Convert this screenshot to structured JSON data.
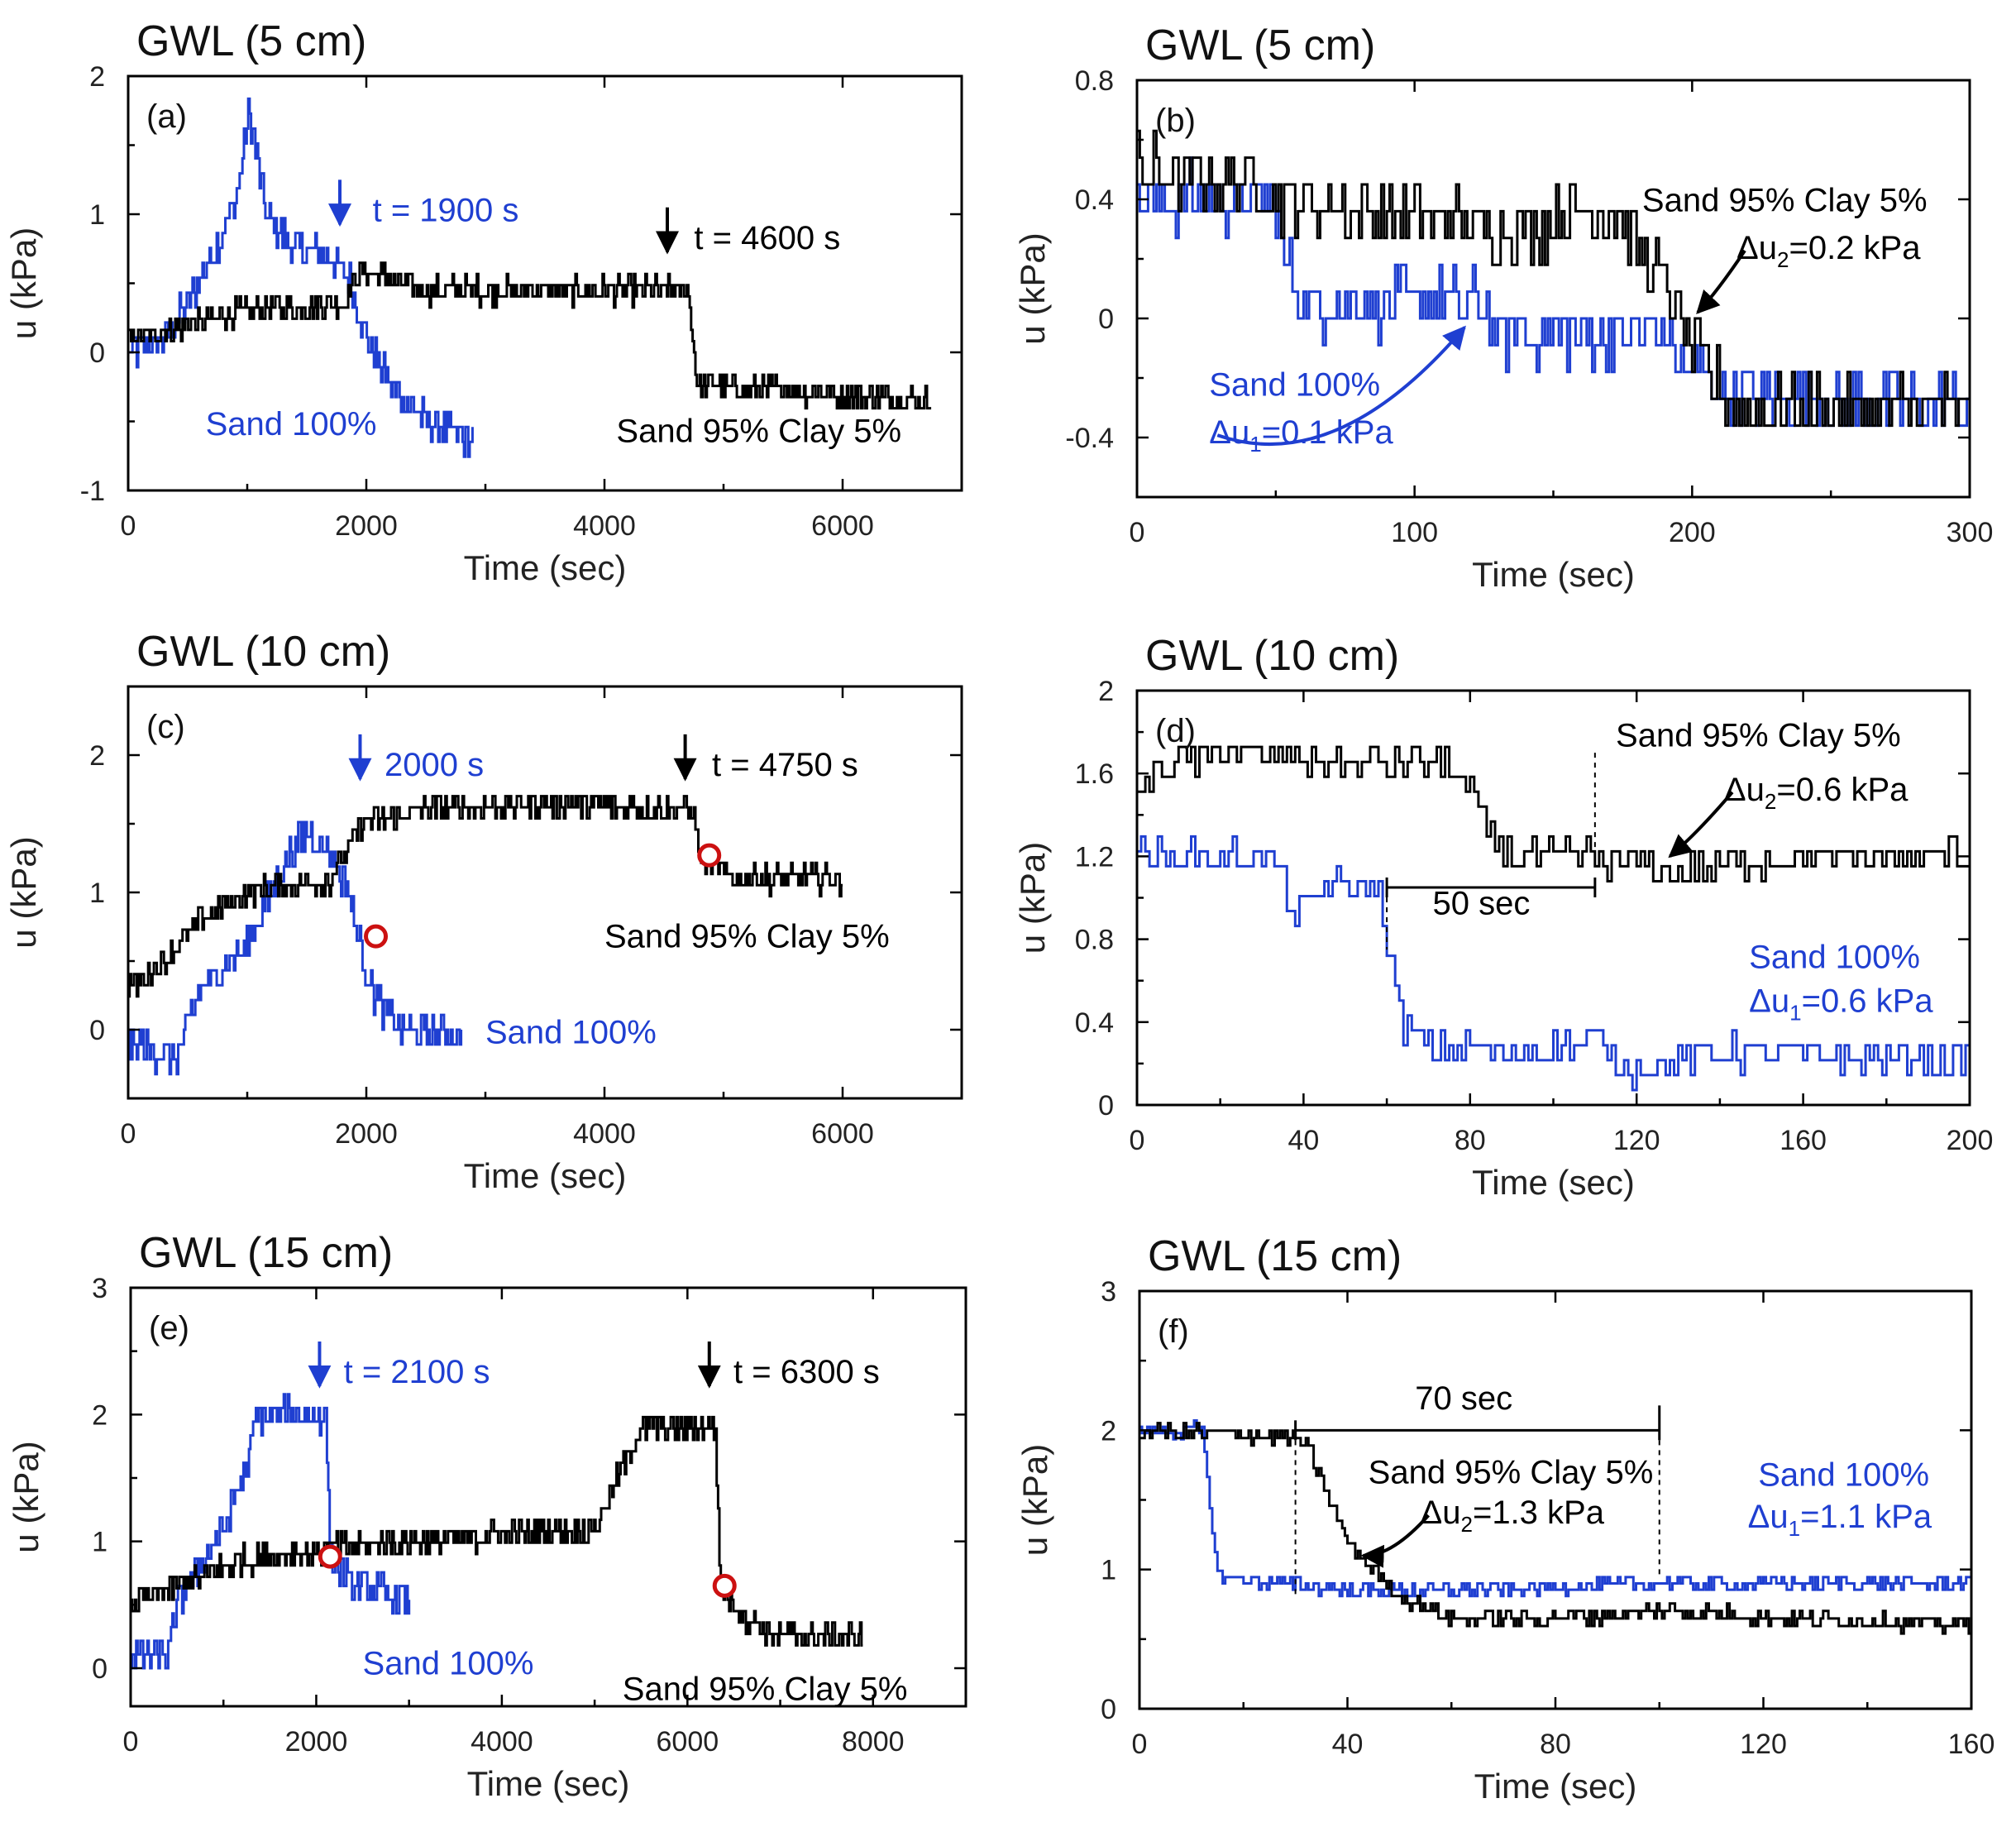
{
  "colors": {
    "sand": "#1f3fd1",
    "mix": "#000000",
    "marker": "#cc1111"
  },
  "series_names": {
    "sand": "Sand 100%",
    "mix": "Sand 95% Clay 5%"
  },
  "chart_data": [
    {
      "id": "a",
      "type": "line",
      "panel_label": "(a)",
      "title": "GWL (5 cm)",
      "xlabel": "Time (sec)",
      "ylabel": "u (kPa)",
      "xlim": [
        0,
        7000
      ],
      "ylim": [
        -1,
        2
      ],
      "xticks": [
        0,
        2000,
        4000,
        6000
      ],
      "yticks": [
        -1,
        0,
        1,
        2
      ],
      "noise": {
        "sand": 0.12,
        "mix": 0.09
      },
      "dt": {
        "sand": 12,
        "mix": 12
      },
      "series": [
        {
          "key": "sand",
          "name": "Sand 100%",
          "x": [
            0,
            300,
            600,
            900,
            1020,
            1150,
            1400,
            1700,
            1850,
            2000,
            2200,
            2500,
            2900
          ],
          "y": [
            0,
            0.1,
            0.5,
            1.1,
            1.75,
            1.0,
            0.75,
            0.7,
            0.55,
            0.1,
            -0.25,
            -0.5,
            -0.65
          ]
        },
        {
          "key": "mix",
          "name": "Sand 95% Clay 5%",
          "x": [
            0,
            500,
            1000,
            1800,
            1950,
            2500,
            4000,
            4700,
            4780,
            5000,
            6000,
            6750
          ],
          "y": [
            0.1,
            0.2,
            0.3,
            0.35,
            0.6,
            0.45,
            0.45,
            0.45,
            -0.25,
            -0.25,
            -0.3,
            -0.35
          ]
        }
      ],
      "annotations": [
        {
          "text": "t = 1900 s",
          "x": 1900,
          "y": 0.95,
          "color": "sand",
          "arrow": true,
          "ax": 1750,
          "ay": 0.95
        },
        {
          "text": "t = 4600 s",
          "x": 4600,
          "y": 0.75,
          "color": "mix",
          "arrow": true,
          "ax": 4500,
          "ay": 0.75
        },
        {
          "text": "Sand 100%",
          "x": 650,
          "y": -0.6,
          "color": "sand"
        },
        {
          "text": "Sand 95% Clay 5%",
          "x": 4100,
          "y": -0.65,
          "color": "mix"
        }
      ],
      "markers": []
    },
    {
      "id": "b",
      "type": "line",
      "panel_label": "(b)",
      "title": "GWL (5 cm)",
      "xlabel": "Time (sec)",
      "ylabel": "u (kPa)",
      "xlim": [
        0,
        300
      ],
      "ylim": [
        -0.6,
        0.8
      ],
      "xticks": [
        0,
        100,
        200,
        300
      ],
      "yticks": [
        -0.4,
        0,
        0.4,
        0.8
      ],
      "ytick_labels": [
        "-0.4",
        "0",
        "0.4",
        "0.8"
      ],
      "noise": {
        "sand": 0.1,
        "mix": 0.1
      },
      "dt": {
        "sand": 1,
        "mix": 1
      },
      "series": [
        {
          "key": "sand",
          "name": "Sand 100%",
          "x": [
            0,
            50,
            52,
            60,
            125,
            130,
            175,
            190,
            195,
            215,
            300
          ],
          "y": [
            0.4,
            0.4,
            0.2,
            0.05,
            0.05,
            -0.05,
            -0.05,
            -0.05,
            -0.15,
            -0.25,
            -0.3
          ]
        },
        {
          "key": "mix",
          "name": "Sand 95% Clay 5%",
          "x": [
            0,
            45,
            50,
            100,
            130,
            170,
            180,
            190,
            200,
            215,
            300
          ],
          "y": [
            0.5,
            0.45,
            0.4,
            0.35,
            0.3,
            0.35,
            0.25,
            0.1,
            -0.1,
            -0.3,
            -0.3
          ]
        }
      ],
      "annotations": [
        {
          "text": "Sand 95% Clay 5%",
          "x": 182,
          "y": 0.36,
          "color": "mix"
        },
        {
          "text": "Δu",
          "sub": "2",
          "rest": "=0.2 kPa",
          "x": 216,
          "y": 0.2,
          "color": "mix",
          "arrow": true,
          "ax": 202,
          "ay": 0.02
        },
        {
          "text": "Sand 100%",
          "x": 26,
          "y": -0.26,
          "color": "sand"
        },
        {
          "text": "Δu",
          "sub": "1",
          "rest": "=0.1 kPa",
          "x": 26,
          "y": -0.42,
          "color": "sand",
          "arrow": true,
          "ax": 118,
          "ay": -0.03
        }
      ],
      "markers": []
    },
    {
      "id": "c",
      "type": "line",
      "panel_label": "(c)",
      "title": "GWL (10 cm)",
      "xlabel": "Time (sec)",
      "ylabel": "u (kPa)",
      "xlim": [
        0,
        7000
      ],
      "ylim": [
        -0.5,
        2.5
      ],
      "xticks": [
        0,
        2000,
        4000,
        6000
      ],
      "yticks": [
        0,
        1,
        2
      ],
      "noise": {
        "sand": 0.12,
        "mix": 0.09
      },
      "dt": {
        "sand": 12,
        "mix": 12
      },
      "series": [
        {
          "key": "sand",
          "name": "Sand 100%",
          "x": [
            0,
            400,
            600,
            1000,
            1300,
            1500,
            1700,
            1850,
            2000,
            2100,
            2300,
            2800
          ],
          "y": [
            -0.1,
            -0.2,
            0.3,
            0.6,
            1.2,
            1.45,
            1.3,
            1.0,
            0.4,
            0.2,
            0.0,
            -0.05
          ]
        },
        {
          "key": "mix",
          "name": "Sand 95% Clay 5%",
          "x": [
            0,
            300,
            600,
            1000,
            1700,
            1950,
            2500,
            3500,
            4750,
            4800,
            5100,
            6000
          ],
          "y": [
            0.3,
            0.5,
            0.8,
            1.0,
            1.1,
            1.5,
            1.6,
            1.65,
            1.6,
            1.25,
            1.1,
            1.1
          ]
        }
      ],
      "annotations": [
        {
          "text": "2000 s",
          "x": 2000,
          "y": 1.85,
          "color": "sand",
          "arrow": true,
          "ax": 1920,
          "ay": 1.85
        },
        {
          "text": "t = 4750 s",
          "x": 4750,
          "y": 1.85,
          "color": "mix",
          "arrow": true,
          "ax": 4650,
          "ay": 1.85
        },
        {
          "text": "Sand 95% Clay 5%",
          "x": 4000,
          "y": 0.6,
          "color": "mix"
        },
        {
          "text": "Sand 100%",
          "x": 3000,
          "y": -0.1,
          "color": "sand"
        }
      ],
      "markers": [
        {
          "x": 2080,
          "y": 0.68
        },
        {
          "x": 4880,
          "y": 1.27
        }
      ]
    },
    {
      "id": "d",
      "type": "line",
      "panel_label": "(d)",
      "title": "GWL (10 cm)",
      "xlabel": "Time (sec)",
      "ylabel": "u (kPa)",
      "xlim": [
        0,
        200
      ],
      "ylim": [
        0,
        2
      ],
      "xticks": [
        0,
        40,
        80,
        120,
        160,
        200
      ],
      "yticks": [
        0,
        0.4,
        0.8,
        1.2,
        1.6,
        2
      ],
      "ytick_labels": [
        "0",
        "0.4",
        "0.8",
        "1.2",
        "1.6",
        "2"
      ],
      "noise": {
        "sand": 0.08,
        "mix": 0.08
      },
      "dt": {
        "sand": 1,
        "mix": 1
      },
      "series": [
        {
          "key": "sand",
          "name": "Sand 100%",
          "x": [
            0,
            30,
            35,
            38,
            45,
            58,
            60,
            63,
            70,
            90,
            110,
            118,
            140,
            200
          ],
          "y": [
            1.2,
            1.2,
            1.1,
            0.9,
            1.05,
            1.05,
            0.8,
            0.4,
            0.28,
            0.25,
            0.3,
            0.18,
            0.25,
            0.22
          ]
        },
        {
          "key": "mix",
          "name": "Sand 95% Clay 5%",
          "x": [
            0,
            10,
            20,
            50,
            75,
            80,
            85,
            90,
            110,
            130,
            150,
            200
          ],
          "y": [
            1.55,
            1.65,
            1.7,
            1.65,
            1.65,
            1.5,
            1.3,
            1.2,
            1.2,
            1.12,
            1.18,
            1.2
          ]
        }
      ],
      "annotations": [
        {
          "text": "Sand 95% Clay 5%",
          "x": 115,
          "y": 1.73,
          "color": "mix"
        },
        {
          "text": "Δu",
          "sub": "2",
          "rest": "=0.6 kPa",
          "x": 141,
          "y": 1.47,
          "color": "mix",
          "arrow": true,
          "ax": 128,
          "ay": 1.2
        },
        {
          "text": "50 sec",
          "x": 71,
          "y": 0.92,
          "color": "mix"
        },
        {
          "text": "Sand 100%",
          "x": 147,
          "y": 0.66,
          "color": "sand"
        },
        {
          "text": "Δu",
          "sub": "1",
          "rest": "=0.6 kPa",
          "x": 147,
          "y": 0.45,
          "color": "sand"
        }
      ],
      "markers": []
    },
    {
      "id": "e",
      "type": "line",
      "panel_label": "(e)",
      "title": "GWL (15 cm)",
      "xlabel": "Time (sec)",
      "ylabel": "u (kPa)",
      "xlim": [
        0,
        9000
      ],
      "ylim": [
        -0.3,
        3
      ],
      "xticks": [
        0,
        2000,
        4000,
        6000,
        8000
      ],
      "yticks": [
        0,
        1,
        2,
        3
      ],
      "noise": {
        "sand": 0.12,
        "mix": 0.1
      },
      "dt": {
        "sand": 15,
        "mix": 15
      },
      "series": [
        {
          "key": "sand",
          "name": "Sand 100%",
          "x": [
            0,
            400,
            500,
            1000,
            1250,
            1350,
            2100,
            2150,
            2400,
            3000
          ],
          "y": [
            0.1,
            0.1,
            0.5,
            1.1,
            1.6,
            2.0,
            2.0,
            0.85,
            0.65,
            0.55
          ]
        },
        {
          "key": "mix",
          "name": "Sand 95% Clay 5%",
          "x": [
            0,
            500,
            1200,
            2200,
            3000,
            4000,
            5000,
            5300,
            5500,
            6300,
            6350,
            6600,
            7000,
            7900
          ],
          "y": [
            0.5,
            0.65,
            0.85,
            0.95,
            1.0,
            1.05,
            1.1,
            1.6,
            1.9,
            1.9,
            0.65,
            0.4,
            0.25,
            0.25
          ]
        }
      ],
      "annotations": [
        {
          "text": "t = 2100 s",
          "x": 2100,
          "y": 2.25,
          "color": "sand",
          "arrow": true,
          "ax": 2000,
          "ay": 2.25
        },
        {
          "text": "t = 6300 s",
          "x": 6300,
          "y": 2.25,
          "color": "mix",
          "arrow": true,
          "ax": 6200,
          "ay": 2.25
        },
        {
          "text": "Sand 100%",
          "x": 2500,
          "y": -0.05,
          "color": "sand"
        },
        {
          "text": "Sand 95% Clay 5%",
          "x": 5300,
          "y": -0.25,
          "color": "mix"
        }
      ],
      "markers": [
        {
          "x": 2150,
          "y": 0.88
        },
        {
          "x": 6400,
          "y": 0.65
        }
      ]
    },
    {
      "id": "f",
      "type": "line",
      "panel_label": "(f)",
      "title": "GWL (15 cm)",
      "xlabel": "Time (sec)",
      "ylabel": "u (kPa)",
      "xlim": [
        0,
        160
      ],
      "ylim": [
        0,
        3
      ],
      "xticks": [
        0,
        40,
        80,
        120,
        160
      ],
      "yticks": [
        0,
        1,
        2,
        3
      ],
      "noise": {
        "sand": 0.05,
        "mix": 0.06
      },
      "dt": {
        "sand": 0.5,
        "mix": 0.5
      },
      "series": [
        {
          "key": "sand",
          "name": "Sand 100%",
          "x": [
            0,
            12,
            15,
            40,
            60,
            100,
            160
          ],
          "y": [
            2.0,
            2.0,
            0.95,
            0.85,
            0.85,
            0.9,
            0.9
          ]
        },
        {
          "key": "mix",
          "name": "Sand 95% Clay 5%",
          "x": [
            0,
            30,
            32,
            40,
            50,
            60,
            80,
            100,
            160
          ],
          "y": [
            2.0,
            1.95,
            1.9,
            1.2,
            0.8,
            0.65,
            0.65,
            0.7,
            0.6
          ]
        }
      ],
      "annotations": [
        {
          "text": "70 sec",
          "x": 53,
          "y": 2.15,
          "color": "mix"
        },
        {
          "text": "Sand 95% Clay 5%",
          "x": 44,
          "y": 1.62,
          "color": "mix"
        },
        {
          "text": "Δu",
          "sub": "2",
          "rest": "=1.3 kPa",
          "x": 54,
          "y": 1.33,
          "color": "mix",
          "arrow": true,
          "ax": 43,
          "ay": 1.1
        },
        {
          "text": "Sand 100%",
          "x": 119,
          "y": 1.6,
          "color": "sand"
        },
        {
          "text": "Δu",
          "sub": "1",
          "rest": "=1.1 kPa",
          "x": 117,
          "y": 1.3,
          "color": "sand"
        }
      ],
      "markers": []
    }
  ]
}
